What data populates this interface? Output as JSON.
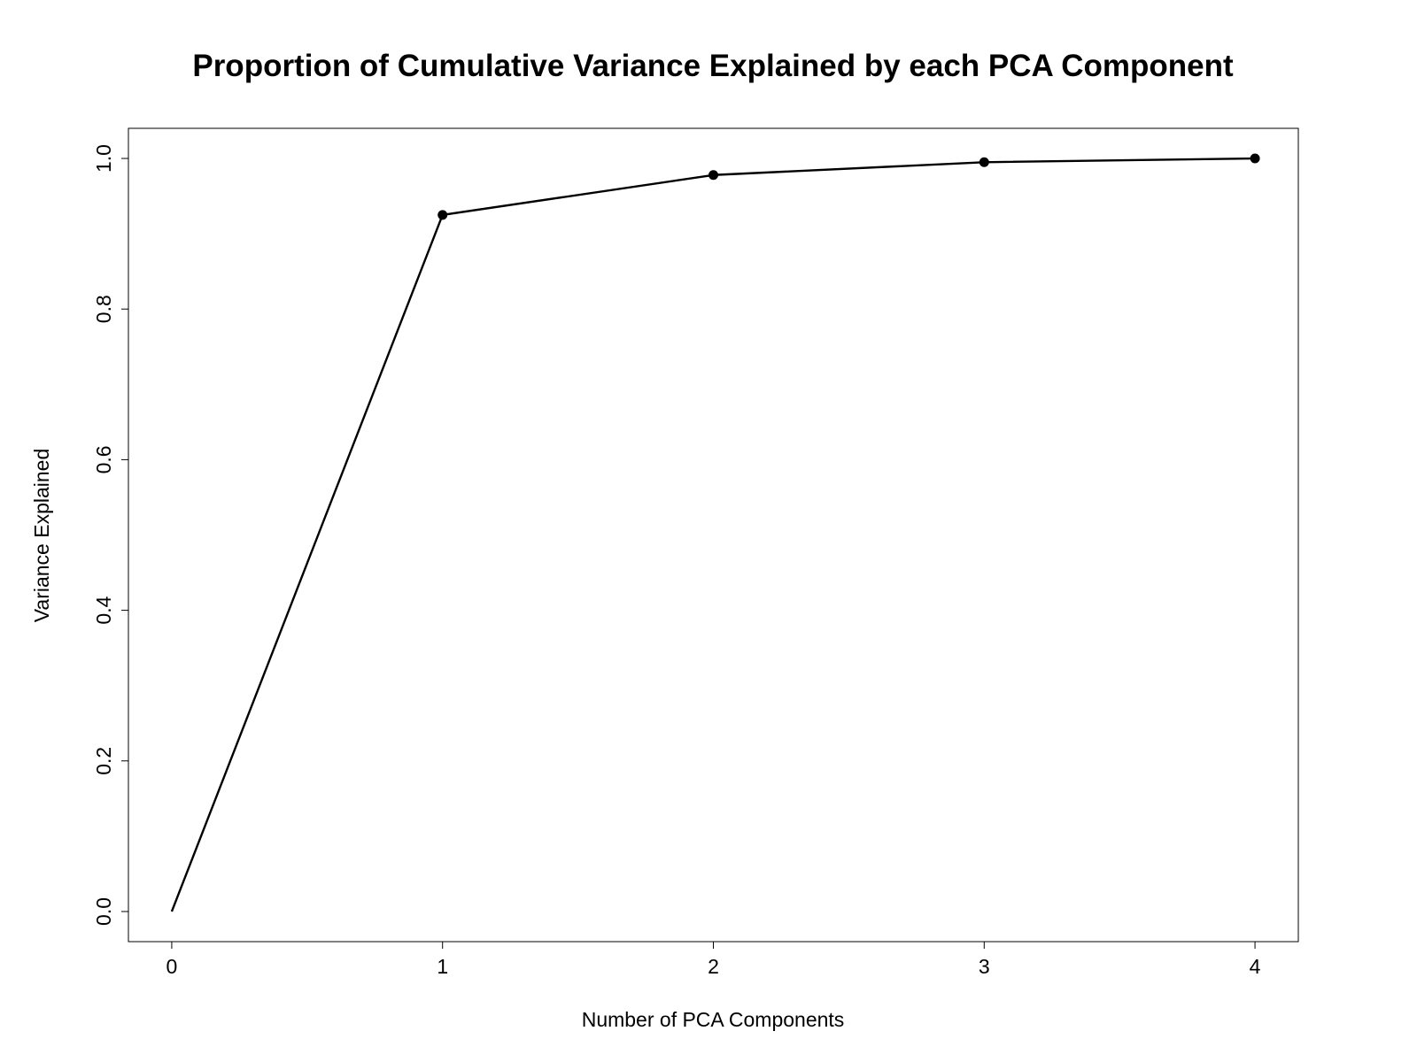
{
  "chart_data": {
    "type": "line",
    "title": "Proportion of Cumulative Variance Explained by each PCA Component",
    "xlabel": "Number of PCA Components",
    "ylabel": "Variance Explained",
    "x": [
      0,
      1,
      2,
      3,
      4
    ],
    "series": [
      {
        "values": [
          0.0,
          0.925,
          0.978,
          0.995,
          1.0
        ],
        "markers": [
          false,
          true,
          true,
          true,
          true
        ],
        "color": "#000000"
      }
    ],
    "xlim": [
      -0.16,
      4.16
    ],
    "ylim": [
      -0.04,
      1.04
    ],
    "xticks": [
      0,
      1,
      2,
      3,
      4
    ],
    "xtick_labels": [
      "0",
      "1",
      "2",
      "3",
      "4"
    ],
    "yticks": [
      0.0,
      0.2,
      0.4,
      0.6,
      0.8,
      1.0
    ],
    "ytick_labels": [
      "0.0",
      "0.2",
      "0.4",
      "0.6",
      "0.8",
      "1.0"
    ],
    "grid": false,
    "legend": "none"
  }
}
